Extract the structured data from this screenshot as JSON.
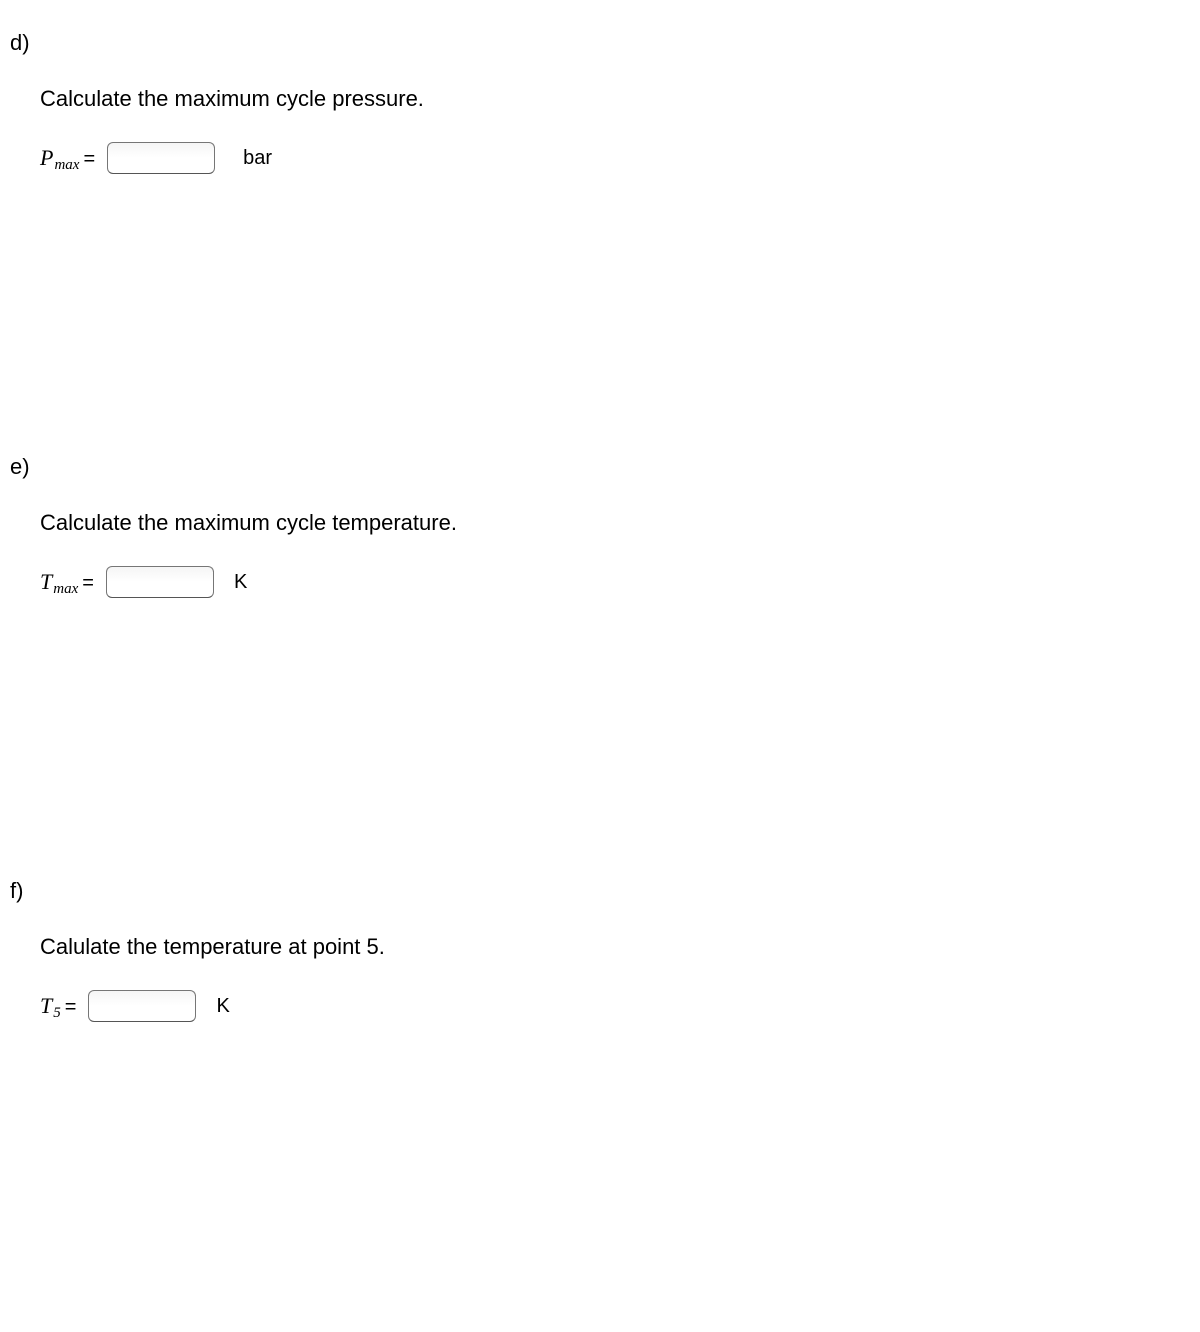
{
  "questions": [
    {
      "label": "d)",
      "prompt": "Calculate the maximum cycle pressure.",
      "variable_base": "P",
      "variable_sub": "max",
      "equals": "=",
      "unit": "bar",
      "unit_class": "unit"
    },
    {
      "label": "e)",
      "prompt": "Calculate the maximum cycle temperature.",
      "variable_base": "T",
      "variable_sub": "max",
      "equals": "=",
      "unit": "K",
      "unit_class": "unit tight"
    },
    {
      "label": "f)",
      "prompt": "Calulate the temperature at point 5.",
      "variable_base": "T",
      "variable_sub": "5",
      "equals": "=",
      "unit": "K",
      "unit_class": "unit tight"
    }
  ],
  "colors": {
    "background": "#ffffff",
    "text": "#000000",
    "input_border": "#767676"
  }
}
